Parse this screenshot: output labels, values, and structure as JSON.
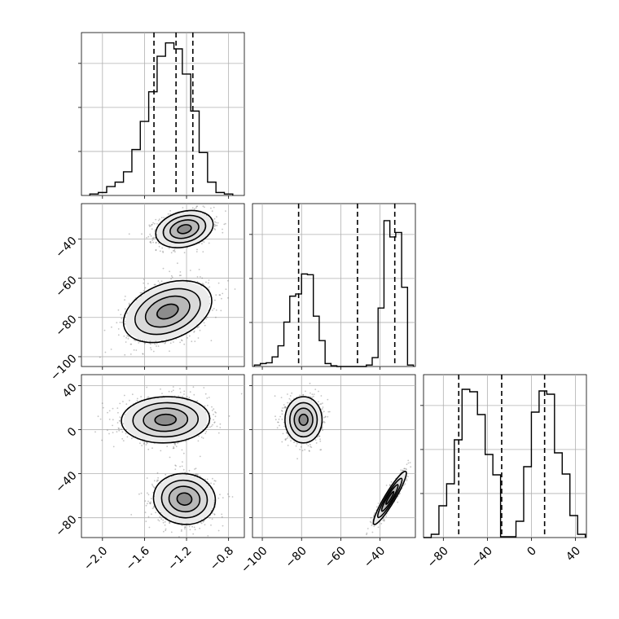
{
  "chart_data": {
    "type": "corner",
    "colors": {
      "line": "#000000",
      "grid": "#b0b0b0",
      "points": "#555555"
    },
    "grid": true,
    "parameters": [
      {
        "id": "p0",
        "range": [
          -2.2,
          -0.65
        ],
        "ticks": [
          -2.0,
          -1.6,
          -1.2,
          -0.8
        ],
        "tick_labels": [
          "−2.0",
          "−1.6",
          "−1.2",
          "−0.8"
        ]
      },
      {
        "id": "p1",
        "range": [
          -105,
          -22
        ],
        "ticks": [
          -100,
          -80,
          -60,
          -40
        ],
        "tick_labels": [
          "−100",
          "−80",
          "−60",
          "−40"
        ]
      },
      {
        "id": "p2",
        "range": [
          -98,
          50
        ],
        "ticks": [
          -80,
          -40,
          0,
          40
        ],
        "tick_labels": [
          "−80",
          "−40",
          "0",
          "40"
        ]
      }
    ],
    "histograms": [
      {
        "param": "p0",
        "bins": [
          -2.12,
          -2.04,
          -1.96,
          -1.88,
          -1.8,
          -1.72,
          -1.64,
          -1.56,
          -1.48,
          -1.4,
          -1.32,
          -1.24,
          -1.16,
          -1.08,
          -1.0,
          -0.92,
          -0.84,
          -0.76
        ],
        "counts": [
          1,
          2,
          6,
          9,
          16,
          31,
          50,
          70,
          94,
          103,
          99,
          82,
          57,
          29,
          9,
          2,
          1
        ],
        "ymax": 110,
        "quantiles": [
          -1.51,
          -1.3,
          -1.14
        ]
      },
      {
        "param": "p1",
        "bins": [
          -104,
          -101,
          -98,
          -95,
          -92,
          -89,
          -86,
          -83,
          -80,
          -77,
          -74,
          -71,
          -68,
          -65,
          -62,
          -59,
          -56,
          -53,
          -50,
          -47,
          -44,
          -41,
          -38,
          -35,
          -32,
          -29,
          -26,
          -23
        ],
        "counts": [
          2,
          4,
          5,
          13,
          28,
          60,
          95,
          98,
          125,
          124,
          68,
          35,
          4,
          1,
          0,
          0,
          0,
          0,
          0,
          2,
          12,
          79,
          197,
          175,
          181,
          107,
          2
        ],
        "ymax": 220,
        "quantiles": [
          -81.5,
          -51.5,
          -32.5
        ]
      },
      {
        "param": "p2",
        "bins": [
          -98,
          -91,
          -84,
          -77,
          -70,
          -63,
          -56,
          -49,
          -42,
          -35,
          -28,
          -21,
          -14,
          -7,
          0,
          7,
          14,
          21,
          28,
          35,
          42,
          49
        ],
        "counts": [
          0,
          4,
          39,
          66,
          120,
          182,
          179,
          151,
          102,
          77,
          1,
          1,
          20,
          87,
          154,
          180,
          176,
          104,
          78,
          27,
          4
        ],
        "ymax": 200,
        "quantiles": [
          -66,
          -27,
          12
        ]
      }
    ],
    "panels_2d": [
      {
        "x": "p0",
        "y": "p1",
        "clusters": [
          {
            "cx": -1.22,
            "cy": -35,
            "sx": 0.13,
            "sy": 4.5,
            "rho": 0.25,
            "n": 1100
          },
          {
            "cx": -1.38,
            "cy": -77,
            "sx": 0.2,
            "sy": 7.5,
            "rho": 0.35,
            "n": 1100
          }
        ]
      },
      {
        "x": "p0",
        "y": "p2",
        "clusters": [
          {
            "cx": -1.4,
            "cy": 9,
            "sx": 0.2,
            "sy": 10,
            "rho": 0.05,
            "n": 1100
          },
          {
            "cx": -1.22,
            "cy": -63,
            "sx": 0.14,
            "sy": 11,
            "rho": -0.05,
            "n": 1100
          }
        ]
      },
      {
        "x": "p1",
        "y": "p2",
        "clusters": [
          {
            "cx": -79,
            "cy": 9,
            "sx": 4.5,
            "sy": 10,
            "rho": 0.0,
            "n": 900
          },
          {
            "cx": -35,
            "cy": -62,
            "sx": 4.0,
            "sy": 11.5,
            "rho": 0.93,
            "n": 900
          }
        ]
      }
    ]
  }
}
